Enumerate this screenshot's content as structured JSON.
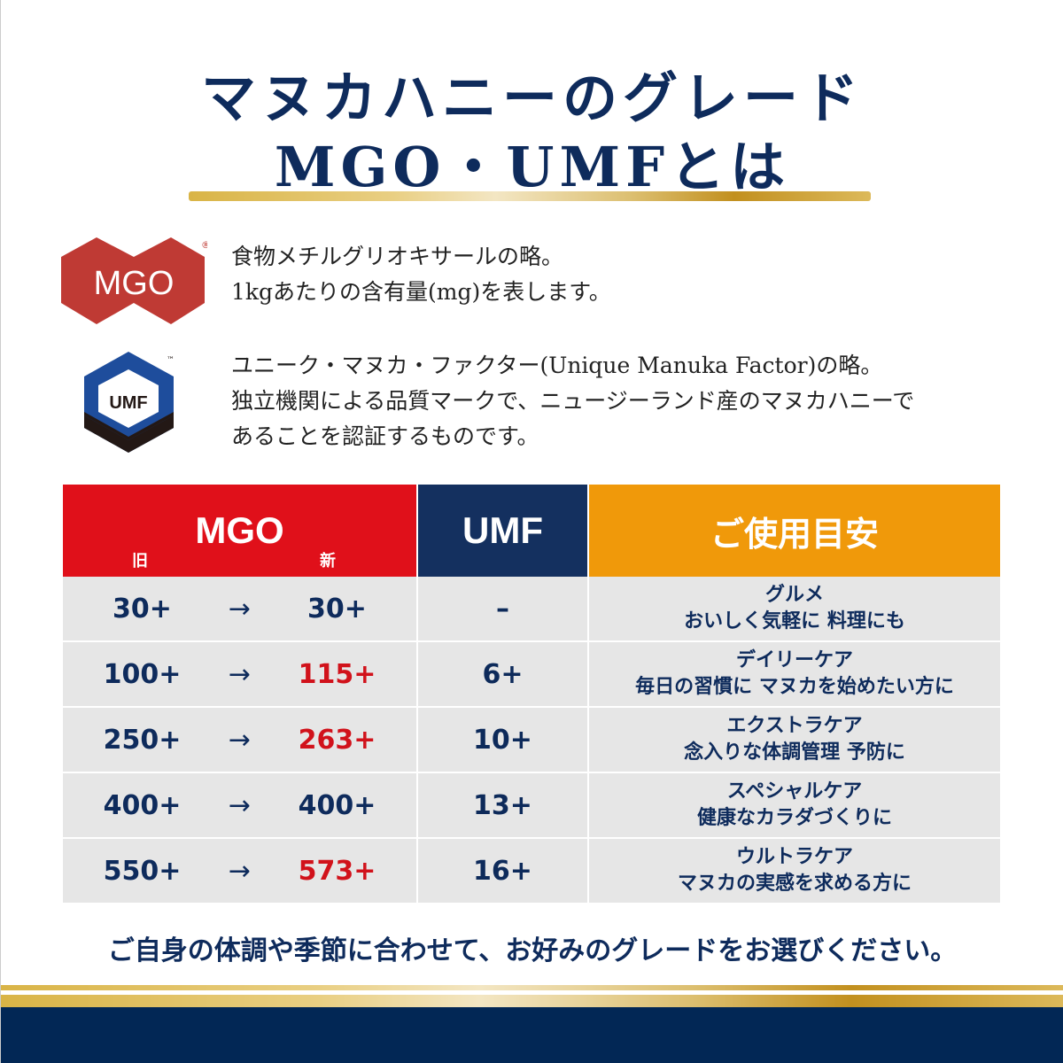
{
  "title": {
    "line1": "マヌカハニーのグレード",
    "line2": "MGO・UMFとは"
  },
  "mgo": {
    "logo_text": "MGO",
    "mark": "®",
    "line1": "食物メチルグリオキサールの略。",
    "line2": "1kgあたりの含有量(mg)を表します。"
  },
  "umf": {
    "logo_text": "UMF",
    "mark": "™",
    "line1": "ユニーク・マヌカ・ファクター(Unique Manuka Factor)の略。",
    "line2": "独立機関による品質マークで、ニュージーランド産のマヌカハニーで",
    "line3": "あることを認証するものです。"
  },
  "table": {
    "headers": {
      "mgo": "MGO",
      "old": "旧",
      "new": "新",
      "umf": "UMF",
      "usage": "ご使用目安"
    },
    "colors": {
      "mgo": "#e0101a",
      "umf": "#14305f",
      "usage": "#f0990a"
    },
    "arrow": "→",
    "rows": [
      {
        "old": "30+",
        "new": "30+",
        "new_changed": false,
        "umf": "–",
        "usage_title": "グルメ",
        "usage_desc": "おいしく気軽に 料理にも"
      },
      {
        "old": "100+",
        "new": "115+",
        "new_changed": true,
        "umf": "6+",
        "usage_title": "デイリーケア",
        "usage_desc": "毎日の習慣に マヌカを始めたい方に"
      },
      {
        "old": "250+",
        "new": "263+",
        "new_changed": true,
        "umf": "10+",
        "usage_title": "エクストラケア",
        "usage_desc": "念入りな体調管理 予防に"
      },
      {
        "old": "400+",
        "new": "400+",
        "new_changed": false,
        "umf": "13+",
        "usage_title": "スペシャルケア",
        "usage_desc": "健康なカラダづくりに"
      },
      {
        "old": "550+",
        "new": "573+",
        "new_changed": true,
        "umf": "16+",
        "usage_title": "ウルトラケア",
        "usage_desc": "マヌカの実感を求める方に"
      }
    ]
  },
  "footer": "ご自身の体調や季節に合わせて、お好みのグレードをお選びください。"
}
